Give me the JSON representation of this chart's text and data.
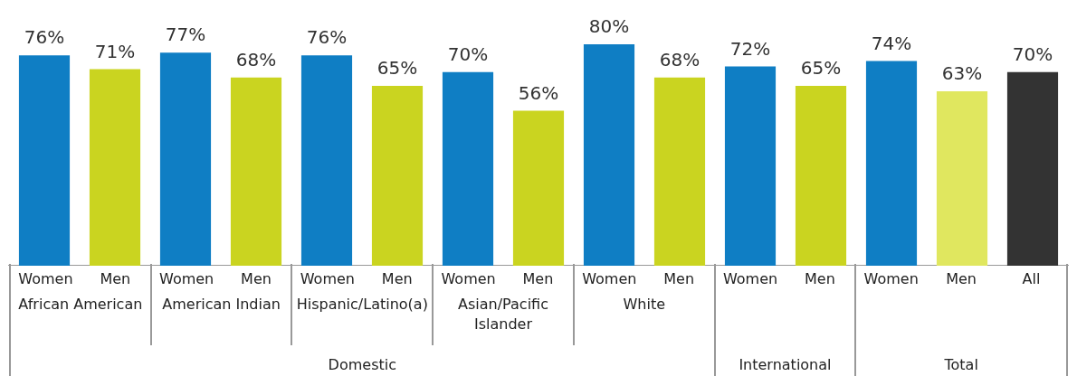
{
  "chart_data": {
    "type": "bar",
    "categories": [
      "Women",
      "Men",
      "Women",
      "Men",
      "Women",
      "Men",
      "Women",
      "Men",
      "Women",
      "Men",
      "Women",
      "Men",
      "Women",
      "Men",
      "All"
    ],
    "values": [
      76,
      71,
      77,
      68,
      76,
      65,
      70,
      56,
      80,
      68,
      72,
      65,
      74,
      63,
      70
    ],
    "value_labels": [
      "76%",
      "71%",
      "77%",
      "68%",
      "76%",
      "65%",
      "70%",
      "56%",
      "80%",
      "68%",
      "72%",
      "65%",
      "74%",
      "63%",
      "70%"
    ],
    "colors": [
      "#0f7ec4",
      "#cad420",
      "#0f7ec4",
      "#cad420",
      "#0f7ec4",
      "#cad420",
      "#0f7ec4",
      "#cad420",
      "#0f7ec4",
      "#cad420",
      "#0f7ec4",
      "#cad420",
      "#0f7ec4",
      "#e0e75f",
      "#333333"
    ],
    "annotations": [
      "African American",
      "American Indian",
      "Hispanic/Latino(a)",
      "Asian/Pacific Islander",
      "White",
      "Domestic",
      "International",
      "Total"
    ],
    "legend": false
  }
}
